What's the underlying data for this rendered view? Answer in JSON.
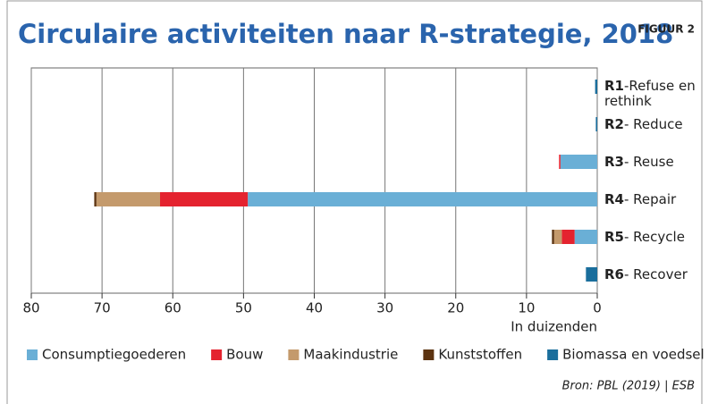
{
  "chart_data": {
    "type": "stacked_barh",
    "title": "Circulaire activiteiten naar R-strategie, 2018",
    "figure_label": "FIGUUR 2",
    "categories": [
      "R1",
      "R2",
      "R3",
      "R4",
      "R5",
      "R6"
    ],
    "category_descriptions": [
      "-Refuse en rethink",
      "- Reduce",
      "- Reuse",
      "- Repair",
      "- Recycle",
      "- Recover"
    ],
    "series": [
      {
        "name": "Consumptiegoederen",
        "color": "#6aafd6",
        "values": [
          0,
          0,
          5.2,
          49.4,
          3.2,
          0
        ]
      },
      {
        "name": "Bouw",
        "color": "#e4232f",
        "values": [
          0,
          0,
          0.2,
          12.4,
          1.8,
          0
        ]
      },
      {
        "name": "Maakindustrie",
        "color": "#c49a6c",
        "values": [
          0,
          0,
          0,
          9.0,
          1.1,
          0
        ]
      },
      {
        "name": "Kunststoffen",
        "color": "#5c3310",
        "values": [
          0,
          0,
          0,
          0.3,
          0.3,
          0
        ]
      },
      {
        "name": "Biomassa en voedsel",
        "color": "#1a6e9c",
        "values": [
          0.3,
          0.2,
          0,
          0,
          0,
          1.6
        ]
      }
    ],
    "xlim": [
      80,
      0
    ],
    "xticks": [
      80,
      70,
      60,
      50,
      40,
      30,
      20,
      10,
      0
    ],
    "xlabel": "In duizenden",
    "grid": true,
    "source": "Bron: PBL (2019) | ESB"
  }
}
